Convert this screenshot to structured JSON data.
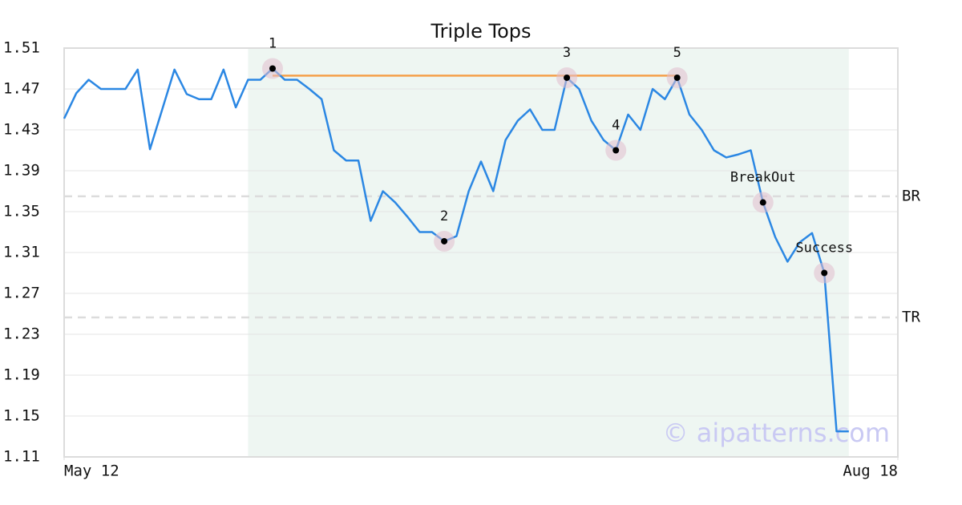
{
  "chart_data": {
    "type": "line",
    "title": "Triple Tops",
    "x": [
      0,
      1,
      2,
      3,
      4,
      5,
      6,
      7,
      8,
      9,
      10,
      11,
      12,
      13,
      14,
      15,
      16,
      17,
      18,
      19,
      20,
      21,
      22,
      23,
      24,
      25,
      26,
      27,
      28,
      29,
      30,
      31,
      32,
      33,
      34,
      35,
      36,
      37,
      38,
      39,
      40,
      41,
      42,
      43,
      44,
      45,
      46,
      47,
      48,
      49,
      50,
      51,
      52,
      53,
      54,
      55,
      56,
      57,
      58,
      59,
      60,
      61,
      62,
      63,
      64
    ],
    "values": [
      1.441,
      1.466,
      1.479,
      1.47,
      1.47,
      1.47,
      1.489,
      1.411,
      1.45,
      1.489,
      1.465,
      1.46,
      1.46,
      1.489,
      1.452,
      1.479,
      1.479,
      1.49,
      1.479,
      1.479,
      1.47,
      1.46,
      1.41,
      1.4,
      1.4,
      1.341,
      1.37,
      1.359,
      1.345,
      1.33,
      1.33,
      1.321,
      1.326,
      1.37,
      1.399,
      1.37,
      1.42,
      1.439,
      1.45,
      1.43,
      1.43,
      1.481,
      1.47,
      1.439,
      1.42,
      1.41,
      1.445,
      1.43,
      1.47,
      1.46,
      1.481,
      1.445,
      1.43,
      1.41,
      1.403,
      1.406,
      1.41,
      1.359,
      1.325,
      1.301,
      1.32,
      1.329,
      1.29,
      1.135,
      1.135
    ],
    "color": "#2b87e3",
    "xlim": [
      0,
      68
    ],
    "xticks": [
      {
        "value": 0,
        "label": "May 12"
      },
      {
        "value": 68,
        "label": "Aug 18"
      }
    ],
    "ylim": [
      1.11,
      1.51
    ],
    "yticks": [
      1.11,
      1.15,
      1.19,
      1.23,
      1.27,
      1.31,
      1.35,
      1.39,
      1.43,
      1.47,
      1.51
    ],
    "grid": true,
    "highlight": {
      "x": [
        15,
        64
      ],
      "color": "#eef6f2"
    },
    "resistance": {
      "x": [
        17,
        50
      ],
      "value": 1.483,
      "color": "#f5a04a"
    },
    "reference_lines": [
      {
        "label": "BR",
        "value": 1.365
      },
      {
        "label": "TR",
        "value": 1.2465
      }
    ],
    "annotations": [
      {
        "label": "1",
        "x": 17,
        "value": 1.49
      },
      {
        "label": "2",
        "x": 31,
        "value": 1.321
      },
      {
        "label": "3",
        "x": 41,
        "value": 1.481
      },
      {
        "label": "4",
        "x": 45,
        "value": 1.41
      },
      {
        "label": "5",
        "x": 50,
        "value": 1.481
      },
      {
        "label": "BreakOut",
        "x": 57,
        "value": 1.359
      },
      {
        "label": "Success",
        "x": 62,
        "value": 1.29
      }
    ],
    "watermark": "© aipatterns.com"
  }
}
